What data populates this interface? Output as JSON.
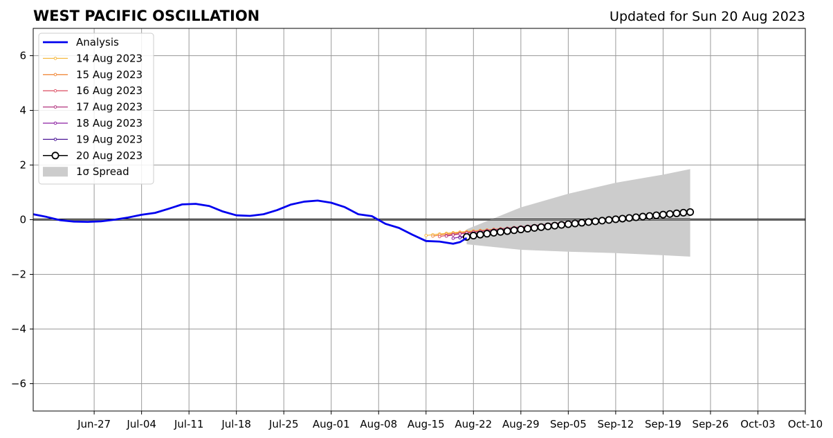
{
  "chart_data": {
    "type": "line",
    "title": "WEST PACIFIC OSCILLATION",
    "subtitle": "Updated for Sun 20 Aug 2023",
    "xlabel": "",
    "ylabel": "",
    "xlim": [
      "2023-06-18",
      "2023-10-10"
    ],
    "ylim": [
      -7,
      7
    ],
    "grid": true,
    "legend_position": "top-left",
    "xticks": [
      "2023-06-27",
      "2023-07-04",
      "2023-07-11",
      "2023-07-18",
      "2023-07-25",
      "2023-08-01",
      "2023-08-08",
      "2023-08-15",
      "2023-08-22",
      "2023-08-29",
      "2023-09-05",
      "2023-09-12",
      "2023-09-19",
      "2023-09-26",
      "2023-10-03",
      "2023-10-10"
    ],
    "xtick_labels": [
      "Jun-27",
      "Jul-04",
      "Jul-11",
      "Jul-18",
      "Jul-25",
      "Aug-01",
      "Aug-08",
      "Aug-15",
      "Aug-22",
      "Aug-29",
      "Sep-05",
      "Sep-12",
      "Sep-19",
      "Sep-26",
      "Oct-03",
      "Oct-10"
    ],
    "yticks": [
      -6,
      -4,
      -2,
      0,
      2,
      4,
      6
    ],
    "ytick_labels": [
      "−6",
      "−4",
      "−2",
      "0",
      "2",
      "4",
      "6"
    ],
    "analysis": {
      "name": "Analysis",
      "color": "#0000ee",
      "points": [
        [
          "2023-06-18",
          0.2
        ],
        [
          "2023-06-20",
          0.1
        ],
        [
          "2023-06-22",
          -0.02
        ],
        [
          "2023-06-24",
          -0.07
        ],
        [
          "2023-06-26",
          -0.08
        ],
        [
          "2023-06-28",
          -0.06
        ],
        [
          "2023-06-30",
          0.0
        ],
        [
          "2023-07-02",
          0.08
        ],
        [
          "2023-07-04",
          0.18
        ],
        [
          "2023-07-06",
          0.25
        ],
        [
          "2023-07-08",
          0.4
        ],
        [
          "2023-07-10",
          0.56
        ],
        [
          "2023-07-12",
          0.58
        ],
        [
          "2023-07-14",
          0.5
        ],
        [
          "2023-07-16",
          0.3
        ],
        [
          "2023-07-18",
          0.16
        ],
        [
          "2023-07-20",
          0.14
        ],
        [
          "2023-07-22",
          0.2
        ],
        [
          "2023-07-24",
          0.35
        ],
        [
          "2023-07-26",
          0.55
        ],
        [
          "2023-07-28",
          0.66
        ],
        [
          "2023-07-30",
          0.7
        ],
        [
          "2023-08-01",
          0.62
        ],
        [
          "2023-08-03",
          0.46
        ],
        [
          "2023-08-05",
          0.2
        ],
        [
          "2023-08-07",
          0.13
        ],
        [
          "2023-08-09",
          -0.15
        ],
        [
          "2023-08-11",
          -0.3
        ],
        [
          "2023-08-13",
          -0.55
        ],
        [
          "2023-08-15",
          -0.78
        ],
        [
          "2023-08-17",
          -0.8
        ],
        [
          "2023-08-19",
          -0.88
        ],
        [
          "2023-08-20",
          -0.82
        ],
        [
          "2023-08-21",
          -0.67
        ]
      ]
    },
    "forecasts": [
      {
        "name": "14 Aug 2023",
        "color": "#f5b941",
        "start": [
          "2023-08-15",
          -0.58
        ],
        "end": [
          "2023-09-05",
          -0.15
        ]
      },
      {
        "name": "15 Aug 2023",
        "color": "#f08a3c",
        "start": [
          "2023-08-16",
          -0.6
        ],
        "end": [
          "2023-09-06",
          -0.1
        ]
      },
      {
        "name": "16 Aug 2023",
        "color": "#de5a6e",
        "start": [
          "2023-08-17",
          -0.62
        ],
        "end": [
          "2023-09-17",
          0.18
        ]
      },
      {
        "name": "17 Aug 2023",
        "color": "#b2337e",
        "start": [
          "2023-08-18",
          -0.6
        ],
        "end": [
          "2023-09-18",
          0.2
        ]
      },
      {
        "name": "18 Aug 2023",
        "color": "#8a1fa0",
        "start": [
          "2023-08-19",
          -0.68
        ],
        "end": [
          "2023-09-20",
          0.22
        ]
      },
      {
        "name": "19 Aug 2023",
        "color": "#4a1696",
        "start": [
          "2023-08-20",
          -0.66
        ],
        "end": [
          "2023-09-20",
          0.24
        ]
      },
      {
        "name": "20 Aug 2023",
        "color": "#000000",
        "start": [
          "2023-08-21",
          -0.63
        ],
        "end": [
          "2023-09-23",
          0.28
        ]
      }
    ],
    "spread": {
      "name": "1σ Spread",
      "color": "#cccccc",
      "upper": [
        [
          "2023-08-21",
          -0.35
        ],
        [
          "2023-08-29",
          0.45
        ],
        [
          "2023-09-05",
          0.95
        ],
        [
          "2023-09-12",
          1.35
        ],
        [
          "2023-09-19",
          1.65
        ],
        [
          "2023-09-23",
          1.85
        ]
      ],
      "lower": [
        [
          "2023-08-21",
          -0.9
        ],
        [
          "2023-08-29",
          -1.1
        ],
        [
          "2023-09-05",
          -1.17
        ],
        [
          "2023-09-12",
          -1.22
        ],
        [
          "2023-09-19",
          -1.3
        ],
        [
          "2023-09-23",
          -1.35
        ]
      ]
    }
  }
}
